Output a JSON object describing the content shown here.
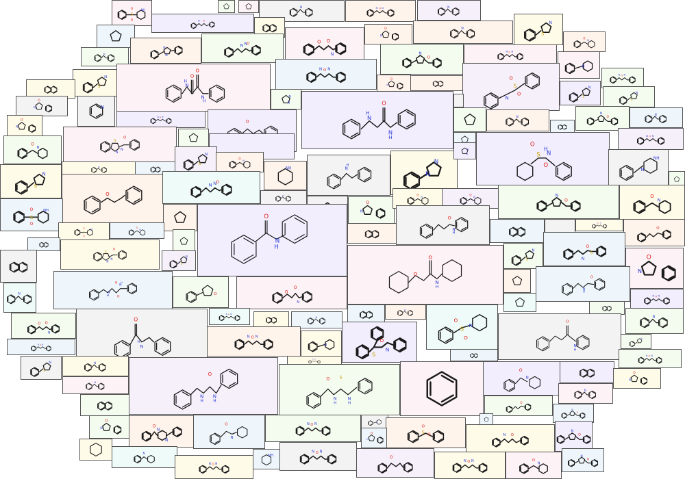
{
  "colors": {
    "carbon_bond": "#1a1a1a",
    "oxygen": "#e0201b",
    "nitrogen": "#2a3bd6",
    "sulfur": "#c7a000",
    "tile_border": "#555555",
    "tile_fills": [
      "#fdf2f6",
      "#f2eefd",
      "#f4fbef",
      "#fffbe9",
      "#eef6fb",
      "#f3f3f3",
      "#fbf1f1",
      "#effbf8",
      "#fff4ec",
      "#f6f0fb"
    ]
  },
  "atoms": {
    "O": "O",
    "N": "N",
    "H": "H",
    "NH": "NH",
    "HN": "HN",
    "S": "S"
  },
  "tiles": [
    {
      "id": "t-bcdfgh",
      "motif": "piperidine-ring-icon",
      "atoms": []
    },
    {
      "id": "t-oxamide-main",
      "motif": "oxamide-molecule",
      "atoms": [
        "O",
        "O",
        "H",
        "N",
        "N",
        "H"
      ]
    },
    {
      "id": "t-aminoacetamide-main",
      "motif": "amino-acetamide-molecule",
      "atoms": [
        "H",
        "N",
        "O",
        "N",
        "H"
      ]
    },
    {
      "id": "t-sulfonamide-main",
      "motif": "sulfonamide-molecule",
      "atoms": [
        "O",
        "S",
        "O",
        "H",
        "N"
      ]
    },
    {
      "id": "t-benzanilide-main",
      "motif": "benzanilide-molecule",
      "atoms": [
        "O",
        "N",
        "H"
      ]
    },
    {
      "id": "t-phenoxyacetanilide-main",
      "motif": "phenoxyacetanilide-molecule",
      "atoms": [
        "O",
        "O",
        "N",
        "H"
      ]
    },
    {
      "id": "t-benzylurea-main",
      "motif": "benzyl-phenyl-urea-molecule",
      "atoms": [
        "O",
        "N",
        "H",
        "N",
        "H"
      ]
    },
    {
      "id": "t-cinnamanilide-main",
      "motif": "cinnamanilide-molecule",
      "atoms": [
        "O",
        "N",
        "H"
      ]
    },
    {
      "id": "t-benzylbenzamide",
      "motif": "n-benzyl-benzamide-molecule",
      "atoms": [
        "O",
        "N",
        "H"
      ]
    },
    {
      "id": "t-thiourea",
      "motif": "acyl-thiourea-molecule",
      "atoms": [
        "O",
        "S",
        "N",
        "H",
        "N",
        "H"
      ]
    },
    {
      "id": "t-benzene",
      "motif": "benzene-ring-molecule",
      "atoms": []
    },
    {
      "id": "t-benzyloxybenzene",
      "motif": "benzyloxy-benzene-molecule",
      "atoms": [
        "O"
      ]
    },
    {
      "id": "t-phenylpiperazine",
      "motif": "phenyl-piperazine-molecule",
      "atoms": [
        "N",
        "NH"
      ]
    },
    {
      "id": "t-piperidine",
      "motif": "piperidine-molecule",
      "atoms": [
        "NH"
      ]
    },
    {
      "id": "t-benzothiazole",
      "motif": "benzothiazole-imine-molecule",
      "atoms": [
        "S",
        "N",
        "N",
        "O"
      ]
    },
    {
      "id": "t-phenylester",
      "motif": "phenyl-benzoate-molecule",
      "atoms": [
        "O",
        "O"
      ]
    },
    {
      "id": "t-phenethylbenzamide",
      "motif": "phenethyl-benzamide-molecule",
      "atoms": [
        "O",
        "N",
        "H"
      ]
    },
    {
      "id": "t-benzylaminoacetamide",
      "motif": "benzylamide-molecule",
      "atoms": [
        "O",
        "N",
        "H",
        "N",
        "H"
      ]
    },
    {
      "id": "t-pyridine",
      "motif": "pyridine-molecule",
      "atoms": [
        "N"
      ]
    },
    {
      "id": "t-phenylpyrazole",
      "motif": "phenyl-pyrazole-molecule",
      "atoms": [
        "N",
        "N"
      ]
    },
    {
      "id": "t-benzylsulfonamide",
      "motif": "benzyl-sulfonamide-molecule",
      "atoms": [
        "O",
        "S",
        "O",
        "H",
        "N"
      ]
    },
    {
      "id": "t-phenylsulfonylpiperidine",
      "motif": "phenylsulfonyl-piperidine-molecule",
      "atoms": [
        "O",
        "S",
        "O",
        "N"
      ]
    },
    {
      "id": "t-benzoylpiperidine",
      "motif": "benzoyl-piperidine-molecule",
      "atoms": [
        "O",
        "N"
      ]
    },
    {
      "id": "t-phenylpyrrolidinone",
      "motif": "phenyl-pyrrolidinone-molecule",
      "atoms": [
        "O"
      ]
    },
    {
      "id": "t-oxamide-phenethyl",
      "motif": "phenethyl-oxamide-molecule",
      "atoms": [
        "O",
        "H",
        "N",
        "N",
        "H",
        "O"
      ]
    },
    {
      "id": "t-phenylpropanamide",
      "motif": "phenylpropanamide-molecule",
      "atoms": [
        "O",
        "N",
        "H"
      ]
    },
    {
      "id": "t-cyclohexane",
      "motif": "cyclohexane-ring-molecule",
      "atoms": []
    }
  ]
}
